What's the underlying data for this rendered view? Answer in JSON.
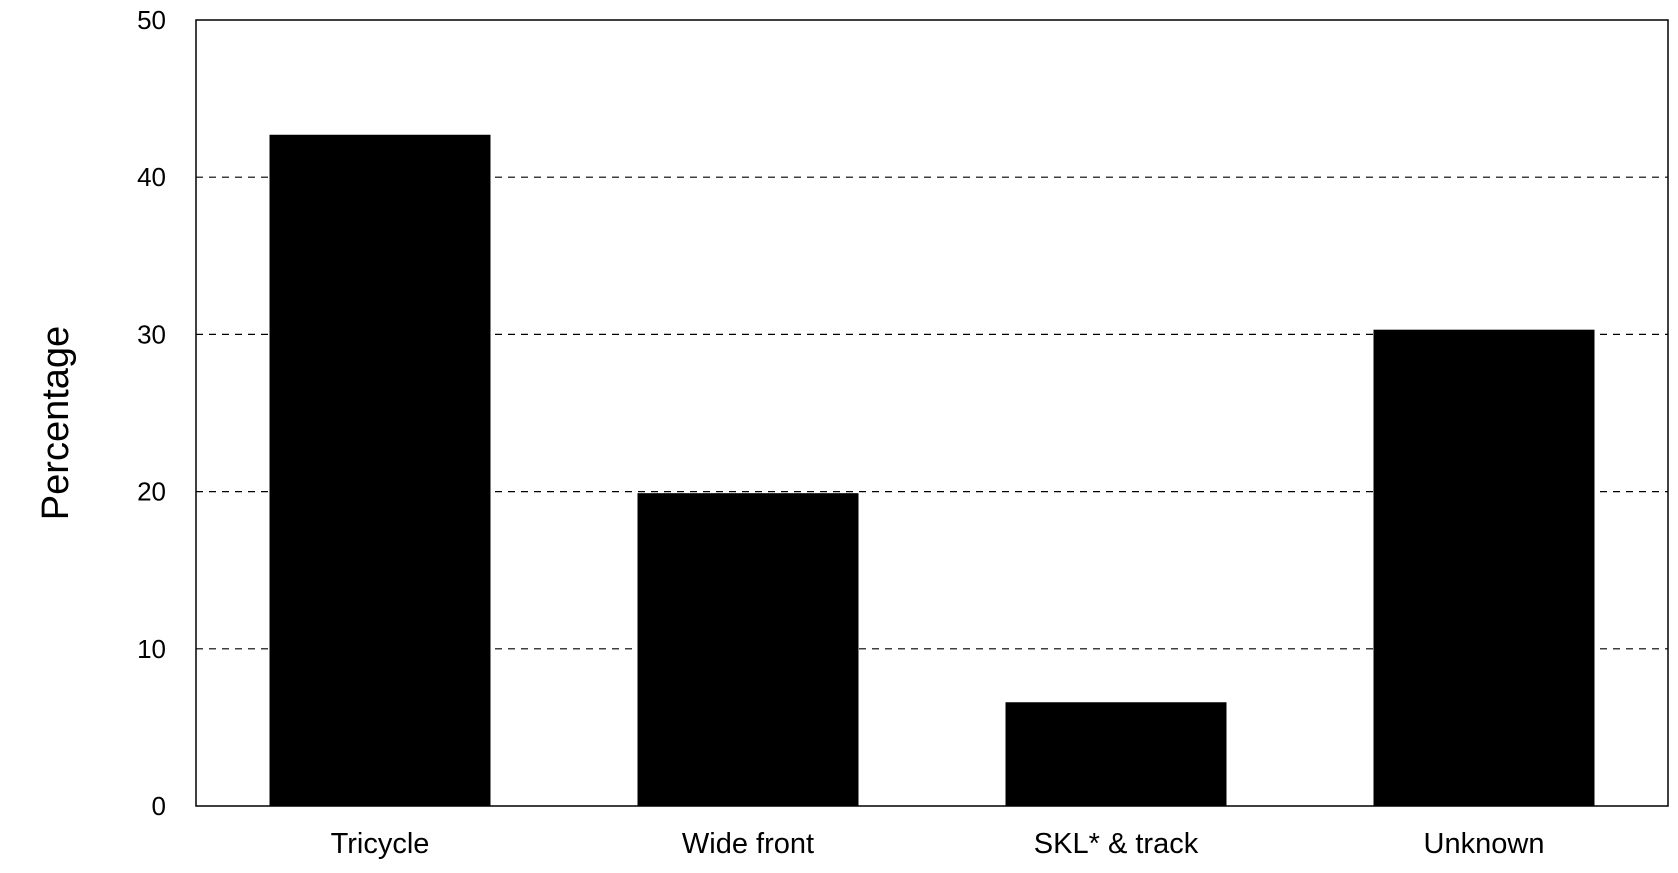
{
  "chart_data": {
    "type": "bar",
    "title": "",
    "xlabel": "",
    "ylabel": "Percentage",
    "categories": [
      "Tricycle",
      "Wide front",
      "SKL* & track",
      "Unknown"
    ],
    "values": [
      42.7,
      19.9,
      6.6,
      30.3
    ],
    "ylim": [
      0,
      50
    ],
    "yticks": [
      0,
      10,
      20,
      30,
      40,
      50
    ],
    "grid": "horizontal dashed",
    "legend": "none",
    "bar_color": "#000000"
  }
}
